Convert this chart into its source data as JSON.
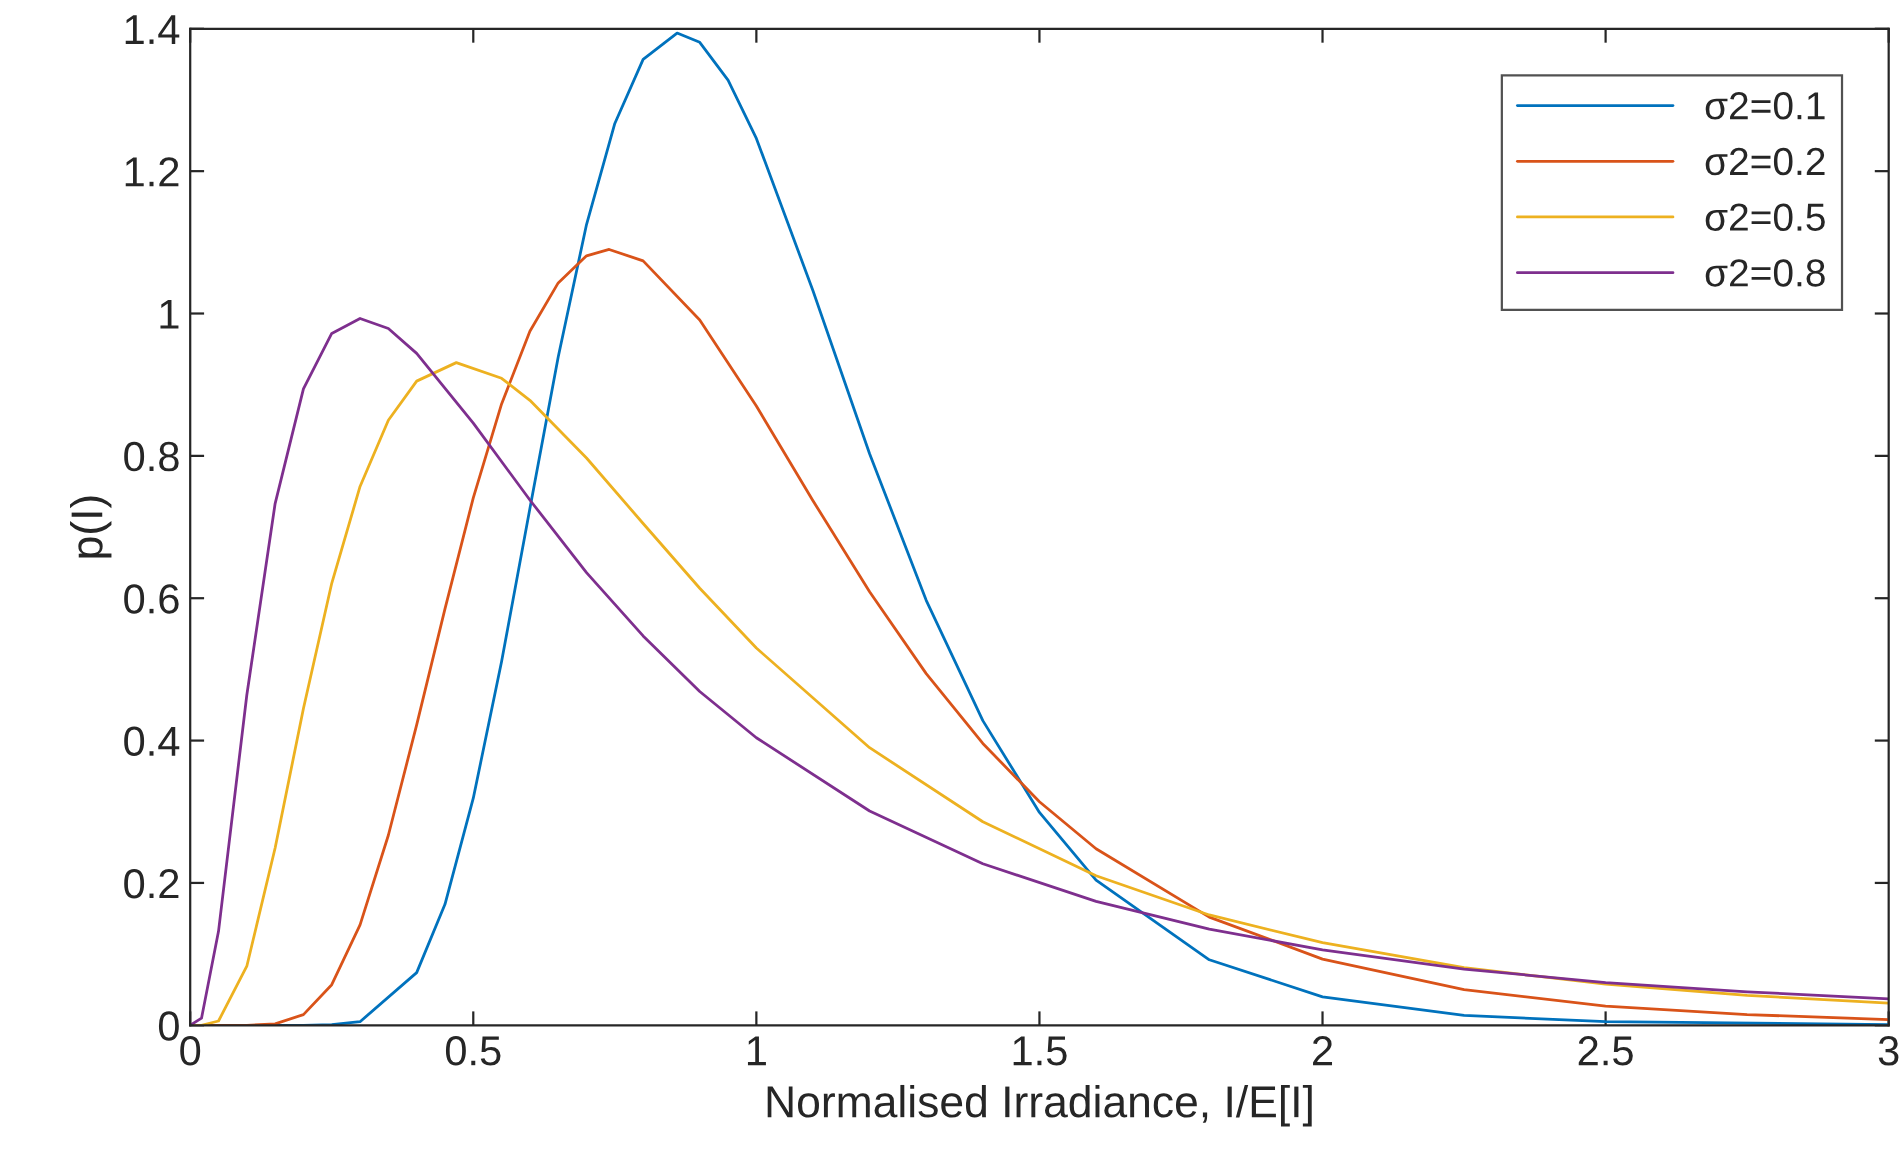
{
  "chart_data": {
    "type": "line",
    "xlabel": "Normalised Irradiance, I/E[I]",
    "ylabel": "p(I)",
    "xlim": [
      0,
      3
    ],
    "xticks": [
      0,
      0.5,
      1,
      1.5,
      2,
      2.5,
      3
    ],
    "ylim": [
      0,
      1.4
    ],
    "yticks": [
      0,
      0.2,
      0.4,
      0.6,
      0.8,
      1,
      1.2,
      1.4
    ],
    "grid": false,
    "legend": "top right",
    "marker": "none",
    "line_style": "solid",
    "series": [
      {
        "name": "σ2=0.1",
        "color": "#0072bd",
        "x": [
          0,
          0.2,
          0.25,
          0.3,
          0.4,
          0.45,
          0.5,
          0.55,
          0.6,
          0.65,
          0.7,
          0.75,
          0.8,
          0.86,
          0.9,
          0.95,
          1.0,
          1.1,
          1.2,
          1.3,
          1.4,
          1.5,
          1.6,
          1.8,
          2.0,
          2.25,
          2.5,
          3.0
        ],
        "values": [
          0,
          0,
          0.001,
          0.005,
          0.074,
          0.17,
          0.319,
          0.511,
          0.726,
          0.939,
          1.125,
          1.267,
          1.357,
          1.394,
          1.381,
          1.328,
          1.246,
          1.032,
          0.803,
          0.597,
          0.428,
          0.299,
          0.204,
          0.092,
          0.04,
          0.014,
          0.005,
          0.001
        ]
      },
      {
        "name": "σ2=0.2",
        "color": "#d95319",
        "x": [
          0,
          0.1,
          0.15,
          0.2,
          0.25,
          0.3,
          0.35,
          0.4,
          0.45,
          0.5,
          0.55,
          0.6,
          0.65,
          0.7,
          0.74,
          0.8,
          0.9,
          1.0,
          1.1,
          1.2,
          1.3,
          1.4,
          1.5,
          1.6,
          1.8,
          2.0,
          2.25,
          2.5,
          2.75,
          3.0
        ],
        "values": [
          0,
          0,
          0.002,
          0.015,
          0.057,
          0.141,
          0.267,
          0.422,
          0.585,
          0.741,
          0.873,
          0.975,
          1.043,
          1.081,
          1.09,
          1.074,
          0.991,
          0.87,
          0.737,
          0.609,
          0.494,
          0.396,
          0.314,
          0.248,
          0.152,
          0.093,
          0.05,
          0.027,
          0.015,
          0.008
        ]
      },
      {
        "name": "σ2=0.5",
        "color": "#edb120",
        "x": [
          0,
          0.02,
          0.05,
          0.1,
          0.15,
          0.2,
          0.25,
          0.3,
          0.35,
          0.4,
          0.47,
          0.55,
          0.6,
          0.7,
          0.8,
          0.9,
          1.0,
          1.2,
          1.4,
          1.6,
          1.8,
          2.0,
          2.25,
          2.5,
          2.75,
          3.0
        ],
        "values": [
          0,
          0,
          0.006,
          0.083,
          0.249,
          0.445,
          0.621,
          0.757,
          0.85,
          0.905,
          0.931,
          0.909,
          0.878,
          0.797,
          0.705,
          0.614,
          0.53,
          0.39,
          0.286,
          0.21,
          0.155,
          0.116,
          0.081,
          0.058,
          0.042,
          0.031
        ]
      },
      {
        "name": "σ2=0.8",
        "color": "#7e2f8e",
        "x": [
          0,
          0.02,
          0.05,
          0.1,
          0.15,
          0.2,
          0.25,
          0.3,
          0.35,
          0.4,
          0.5,
          0.6,
          0.7,
          0.8,
          0.9,
          1.0,
          1.2,
          1.4,
          1.6,
          1.8,
          2.0,
          2.25,
          2.5,
          2.75,
          3.0
        ],
        "values": [
          0,
          0.01,
          0.132,
          0.464,
          0.733,
          0.894,
          0.972,
          0.993,
          0.979,
          0.944,
          0.846,
          0.738,
          0.636,
          0.547,
          0.469,
          0.404,
          0.301,
          0.227,
          0.174,
          0.135,
          0.106,
          0.079,
          0.06,
          0.047,
          0.037
        ]
      }
    ]
  }
}
